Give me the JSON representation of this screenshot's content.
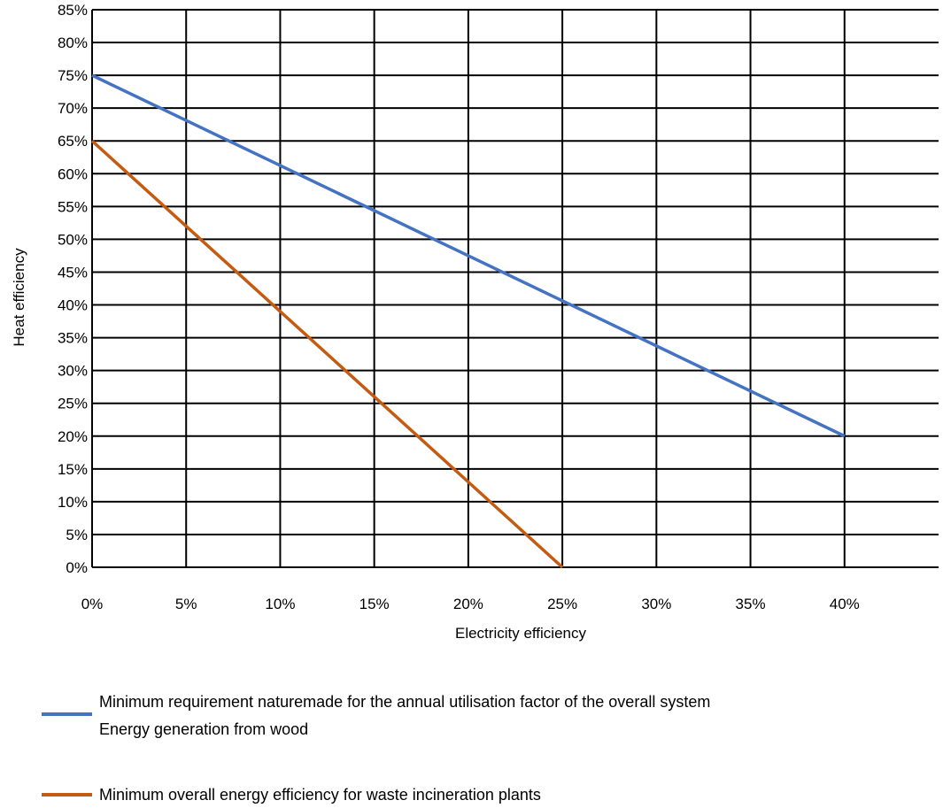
{
  "chart_data": {
    "type": "line",
    "title": "",
    "xlabel": "Electricity efficiency",
    "ylabel": "Heat efficiency",
    "xlim": [
      0,
      45
    ],
    "ylim": [
      0,
      85
    ],
    "x_ticks": [
      0,
      5,
      10,
      15,
      20,
      25,
      30,
      35,
      40
    ],
    "y_ticks": [
      0,
      5,
      10,
      15,
      20,
      25,
      30,
      35,
      40,
      45,
      50,
      55,
      60,
      65,
      70,
      75,
      80,
      85
    ],
    "x_tick_labels": [
      "0%",
      "5%",
      "10%",
      "15%",
      "20%",
      "25%",
      "30%",
      "35%",
      "40%"
    ],
    "y_tick_labels": [
      "0%",
      "5%",
      "10%",
      "15%",
      "20%",
      "25%",
      "30%",
      "35%",
      "40%",
      "45%",
      "50%",
      "55%",
      "60%",
      "65%",
      "70%",
      "75%",
      "80%",
      "85%"
    ],
    "grid": true,
    "legend_position": "bottom",
    "series": [
      {
        "name": "Minimum requirement naturemade for the annual utilisation factor of the overall system Energy generation from wood",
        "legend_lines": [
          "Minimum requirement naturemade for the annual utilisation factor of the overall system",
          "Energy generation from wood"
        ],
        "color": "#4472c4",
        "x": [
          0,
          40
        ],
        "y": [
          75,
          20
        ]
      },
      {
        "name": "Minimum overall energy efficiency for waste incineration plants",
        "legend_lines": [
          "Minimum overall energy efficiency for waste incineration plants"
        ],
        "color": "#c55a11",
        "x": [
          0,
          25
        ],
        "y": [
          65,
          0
        ]
      }
    ]
  }
}
